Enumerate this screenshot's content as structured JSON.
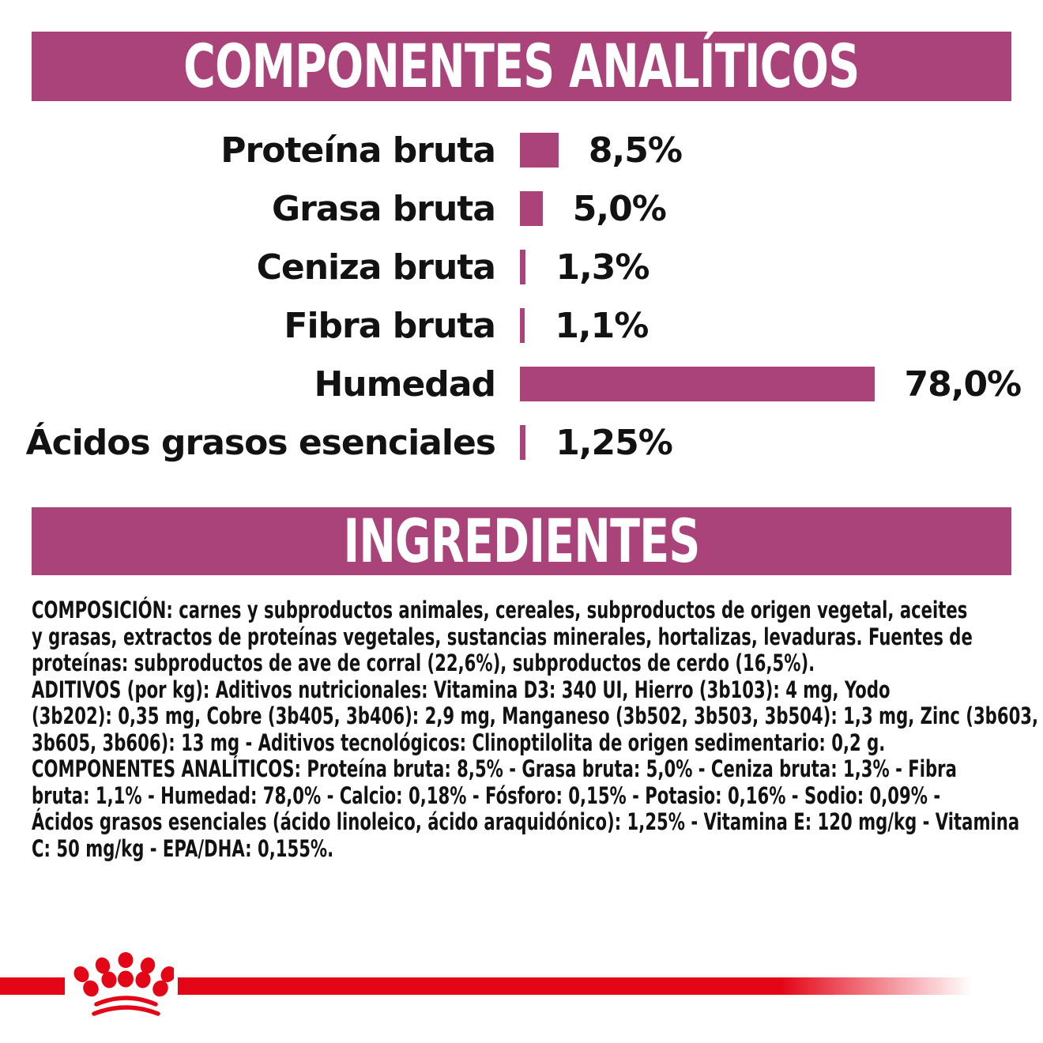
{
  "colors": {
    "banner_bg": "#a94379",
    "banner_text": "#ffffff",
    "bar_fill": "#a94379",
    "body_text": "#121212",
    "brand_red": "#e30617",
    "page_bg": "#ffffff"
  },
  "sections": {
    "analytics": {
      "title": "COMPONENTES ANALÍTICOS"
    },
    "ingredients": {
      "title": "INGREDIENTES"
    }
  },
  "chart_data": {
    "type": "bar",
    "orientation": "horizontal",
    "title": "COMPONENTES ANALÍTICOS",
    "unit": "%",
    "xlim": [
      0,
      78
    ],
    "grid": false,
    "bar_color": "#a94379",
    "categories": [
      "Proteína bruta",
      "Grasa bruta",
      "Ceniza bruta",
      "Fibra bruta",
      "Humedad",
      "Ácidos grasos esenciales"
    ],
    "values": [
      8.5,
      5.0,
      1.3,
      1.1,
      78.0,
      1.25
    ],
    "value_labels": [
      "8,5%",
      "5,0%",
      "1,3%",
      "1,1%",
      "78,0%",
      "1,25%"
    ]
  },
  "ingredients_text": {
    "paragraphs": [
      {
        "lines": [
          "COMPOSICIÓN: carnes y subproductos animales, cereales, subproductos de origen vegetal, aceites",
          "y grasas, extractos de proteínas vegetales, sustancias minerales, hortalizas, levaduras. Fuentes de",
          "proteínas: subproductos de ave de corral (22,6%), subproductos de cerdo (16,5%)."
        ]
      },
      {
        "lines": [
          "ADITIVOS (por kg): Aditivos nutricionales: Vitamina D3: 340 UI, Hierro (3b103): 4 mg, Yodo",
          "(3b202): 0,35 mg, Cobre (3b405, 3b406): 2,9 mg, Manganeso (3b502, 3b503, 3b504): 1,3 mg, Zinc (3b603,",
          "3b605, 3b606): 13 mg - Aditivos tecnológicos: Clinoptilolita de origen sedimentario: 0,2 g."
        ]
      },
      {
        "lines": [
          "COMPONENTES ANALÍTICOS: Proteína bruta: 8,5% - Grasa bruta: 5,0% - Ceniza bruta: 1,3% - Fibra",
          "bruta: 1,1% - Humedad: 78,0% - Calcio: 0,18% - Fósforo: 0,15% - Potasio: 0,16% - Sodio: 0,09% -",
          "Ácidos grasos esenciales (ácido linoleico, ácido araquidónico): 1,25% - Vitamina E: 120 mg/kg - Vitamina",
          "C: 50 mg/kg - EPA/DHA: 0,155%."
        ]
      }
    ]
  },
  "footer": {
    "logo": "royal-canin-crown"
  }
}
